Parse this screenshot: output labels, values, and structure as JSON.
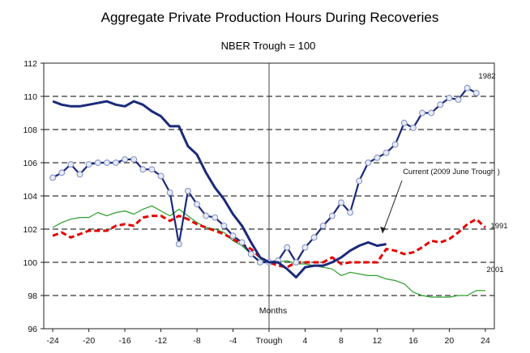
{
  "chart_data": {
    "type": "line",
    "title": "Aggregate Private Production Hours During Recoveries",
    "subtitle": "NBER Trough = 100",
    "xlabel": "Months",
    "ylabel": "",
    "xlim": [
      -25,
      25
    ],
    "ylim": [
      96,
      112
    ],
    "grid": true,
    "y_ticks": [
      "96",
      "98",
      "100",
      "102",
      "104",
      "106",
      "108",
      "110",
      "112"
    ],
    "x_ticks": [
      {
        "x": -24,
        "label": "-24"
      },
      {
        "x": -20,
        "label": "-20"
      },
      {
        "x": -16,
        "label": "-16"
      },
      {
        "x": -12,
        "label": "-12"
      },
      {
        "x": -8,
        "label": "-8"
      },
      {
        "x": -4,
        "label": "-4"
      },
      {
        "x": 0,
        "label": "Trough"
      },
      {
        "x": 4,
        "label": "4"
      },
      {
        "x": 8,
        "label": "8"
      },
      {
        "x": 12,
        "label": "12"
      },
      {
        "x": 16,
        "label": "16"
      },
      {
        "x": 20,
        "label": "20"
      },
      {
        "x": 24,
        "label": "24"
      }
    ],
    "annotation": "Current  (2009 June Trough )",
    "series": [
      {
        "name": "1982",
        "label": "1982",
        "color": "#1b2a7a",
        "style": "solid-markers",
        "x": [
          -24,
          -23,
          -22,
          -21,
          -20,
          -19,
          -18,
          -17,
          -16,
          -15,
          -14,
          -13,
          -12,
          -11,
          -10,
          -9,
          -8,
          -7,
          -6,
          -5,
          -4,
          -3,
          -2,
          -1,
          0,
          1,
          2,
          3,
          4,
          5,
          6,
          7,
          8,
          9,
          10,
          11,
          12,
          13,
          14,
          15,
          16,
          17,
          18,
          19,
          20,
          21,
          22,
          23
        ],
        "values": [
          105.1,
          105.4,
          105.9,
          105.3,
          105.9,
          106.0,
          106.0,
          106.0,
          106.2,
          106.2,
          105.6,
          105.6,
          105.2,
          104.2,
          101.1,
          104.3,
          103.5,
          102.8,
          102.7,
          102.2,
          101.6,
          101.2,
          100.5,
          100.0,
          100.0,
          100.1,
          100.9,
          100.0,
          100.9,
          101.5,
          102.2,
          102.8,
          103.6,
          103.0,
          104.9,
          106.0,
          106.3,
          106.6,
          107.1,
          108.4,
          108.1,
          109.0,
          109.0,
          109.5,
          109.9,
          109.8,
          110.5,
          110.2
        ]
      },
      {
        "name": "Current (2009 June Trough)",
        "label": "",
        "color": "#1b2a7a",
        "style": "thick",
        "x": [
          -24,
          -23,
          -22,
          -21,
          -20,
          -19,
          -18,
          -17,
          -16,
          -15,
          -14,
          -13,
          -12,
          -11,
          -10,
          -9,
          -8,
          -7,
          -6,
          -5,
          -4,
          -3,
          -2,
          -1,
          0,
          1,
          2,
          3,
          4,
          5,
          6,
          7,
          8,
          9,
          10,
          11,
          12,
          13
        ],
        "values": [
          109.7,
          109.5,
          109.4,
          109.4,
          109.5,
          109.6,
          109.7,
          109.5,
          109.4,
          109.7,
          109.5,
          109.1,
          108.8,
          108.2,
          108.2,
          107.0,
          106.5,
          105.4,
          104.5,
          103.8,
          102.9,
          102.2,
          101.2,
          100.3,
          100.0,
          100.0,
          99.6,
          99.1,
          99.7,
          99.8,
          99.8,
          100.0,
          100.3,
          100.7,
          101.0,
          101.2,
          101.0,
          101.1
        ]
      },
      {
        "name": "1991",
        "label": "1991",
        "color": "#e60000",
        "style": "dashed",
        "x": [
          -24,
          -23,
          -22,
          -21,
          -20,
          -19,
          -18,
          -17,
          -16,
          -15,
          -14,
          -13,
          -12,
          -11,
          -10,
          -9,
          -8,
          -7,
          -6,
          -5,
          -4,
          -3,
          -2,
          -1,
          0,
          1,
          2,
          3,
          4,
          5,
          6,
          7,
          8,
          9,
          10,
          11,
          12,
          13,
          14,
          15,
          16,
          17,
          18,
          19,
          20,
          21,
          22,
          23,
          24
        ],
        "values": [
          101.6,
          101.8,
          101.5,
          101.7,
          101.9,
          101.9,
          101.9,
          102.2,
          102.3,
          102.2,
          102.7,
          102.8,
          102.8,
          102.5,
          102.8,
          102.6,
          102.3,
          102.1,
          101.9,
          101.7,
          101.4,
          101.1,
          100.8,
          100.3,
          100.0,
          99.8,
          99.7,
          100.0,
          100.0,
          100.0,
          100.0,
          100.3,
          99.9,
          100.0,
          100.0,
          100.0,
          100.0,
          100.8,
          100.7,
          100.5,
          100.6,
          100.9,
          101.3,
          101.2,
          101.4,
          101.8,
          102.3,
          102.6,
          102.1
        ]
      },
      {
        "name": "2001",
        "label": "2001",
        "color": "#2e9e2e",
        "style": "thin",
        "x": [
          -24,
          -23,
          -22,
          -21,
          -20,
          -19,
          -18,
          -17,
          -16,
          -15,
          -14,
          -13,
          -12,
          -11,
          -10,
          -9,
          -8,
          -7,
          -6,
          -5,
          -4,
          -3,
          -2,
          -1,
          0,
          1,
          2,
          3,
          4,
          5,
          6,
          7,
          8,
          9,
          10,
          11,
          12,
          13,
          14,
          15,
          16,
          17,
          18,
          19,
          20,
          21,
          22,
          23,
          24
        ],
        "values": [
          102.1,
          102.4,
          102.6,
          102.7,
          102.7,
          103.0,
          102.8,
          103.0,
          103.1,
          102.9,
          103.2,
          103.4,
          103.1,
          102.8,
          103.2,
          102.8,
          102.4,
          102.1,
          102.0,
          101.8,
          101.3,
          101.0,
          100.5,
          100.1,
          100.0,
          100.0,
          100.1,
          99.9,
          99.9,
          99.8,
          99.7,
          99.6,
          99.2,
          99.4,
          99.3,
          99.2,
          99.2,
          99.0,
          98.9,
          98.7,
          98.2,
          98.0,
          97.9,
          97.9,
          97.9,
          98.0,
          98.0,
          98.3,
          98.3
        ]
      }
    ]
  }
}
